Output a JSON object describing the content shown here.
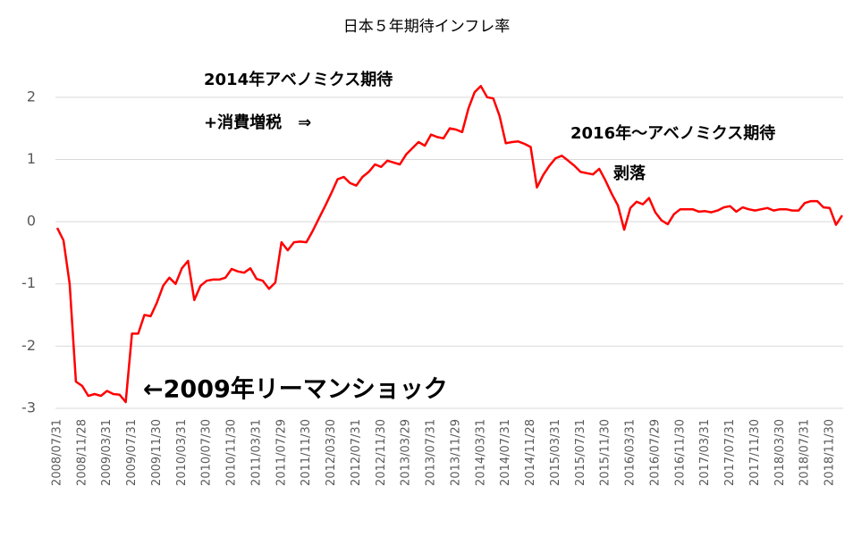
{
  "chart_data": {
    "type": "line",
    "title": "日本５年期待インフレ率",
    "annotations": [
      "2014年アベノミクス期待",
      "+消費増税　⇒",
      "2016年～アベノミクス期待",
      "剥落",
      "←2009年リーマンショック"
    ],
    "categories": [
      "2008/07/31",
      null,
      null,
      null,
      "2008/11/28",
      null,
      null,
      null,
      "2009/03/31",
      null,
      null,
      null,
      "2009/07/31",
      null,
      null,
      null,
      "2009/11/30",
      null,
      null,
      null,
      "2010/03/31",
      null,
      null,
      null,
      "2010/07/30",
      null,
      null,
      null,
      "2010/11/30",
      null,
      null,
      null,
      "2011/03/31",
      null,
      null,
      null,
      "2011/07/29",
      null,
      null,
      null,
      "2011/11/30",
      null,
      null,
      null,
      "2012/03/30",
      null,
      null,
      null,
      "2012/07/31",
      null,
      null,
      null,
      "2012/11/30",
      null,
      null,
      null,
      "2013/03/29",
      null,
      null,
      null,
      "2013/07/31",
      null,
      null,
      null,
      "2013/11/29",
      null,
      null,
      null,
      "2014/03/31",
      null,
      null,
      null,
      "2014/07/31",
      null,
      null,
      null,
      "2014/11/28",
      null,
      null,
      null,
      "2015/03/31",
      null,
      null,
      null,
      "2015/07/31",
      null,
      null,
      null,
      "2015/11/30",
      null,
      null,
      null,
      "2016/03/31",
      null,
      null,
      null,
      "2016/07/29",
      null,
      null,
      null,
      "2016/11/30",
      null,
      null,
      null,
      "2017/03/31",
      null,
      null,
      null,
      "2017/07/31",
      null,
      null,
      null,
      "2017/11/30",
      null,
      null,
      null,
      "2018/03/30",
      null,
      null,
      null,
      "2018/07/31",
      null,
      null,
      null,
      "2018/11/30",
      null,
      null
    ],
    "series": [
      {
        "color": "#ff0000",
        "values": [
          -0.1,
          -0.3,
          -1.0,
          -2.57,
          -2.64,
          -2.8,
          -2.77,
          -2.8,
          -2.72,
          -2.77,
          -2.78,
          -2.9,
          -1.8,
          -1.8,
          -1.5,
          -1.52,
          -1.3,
          -1.03,
          -0.9,
          -1.0,
          -0.75,
          -0.63,
          -1.26,
          -1.03,
          -0.95,
          -0.93,
          -0.93,
          -0.9,
          -0.76,
          -0.8,
          -0.82,
          -0.75,
          -0.92,
          -0.95,
          -1.08,
          -0.98,
          -0.33,
          -0.46,
          -0.33,
          -0.32,
          -0.33,
          -0.15,
          0.05,
          0.25,
          0.46,
          0.68,
          0.72,
          0.62,
          0.58,
          0.72,
          0.8,
          0.92,
          0.88,
          0.98,
          0.95,
          0.92,
          1.08,
          1.18,
          1.28,
          1.22,
          1.4,
          1.36,
          1.34,
          1.5,
          1.48,
          1.44,
          1.82,
          2.08,
          2.18,
          2.0,
          1.98,
          1.7,
          1.26,
          1.28,
          1.29,
          1.25,
          1.2,
          0.55,
          0.75,
          0.9,
          1.02,
          1.06,
          0.98,
          0.9,
          0.8,
          0.78,
          0.76,
          0.85,
          0.66,
          0.45,
          0.26,
          -0.13,
          0.22,
          0.32,
          0.28,
          0.38,
          0.15,
          0.02,
          -0.04,
          0.12,
          0.2,
          0.2,
          0.2,
          0.16,
          0.17,
          0.15,
          0.18,
          0.23,
          0.25,
          0.16,
          0.23,
          0.2,
          0.18,
          0.2,
          0.22,
          0.18,
          0.2,
          0.2,
          0.18,
          0.18,
          0.3,
          0.33,
          0.33,
          0.23,
          0.22,
          -0.05,
          0.1
        ]
      }
    ],
    "ylim": [
      -3,
      2.5
    ],
    "yticks": [
      -3,
      -2,
      -1,
      0,
      1,
      2
    ],
    "grid": true
  }
}
